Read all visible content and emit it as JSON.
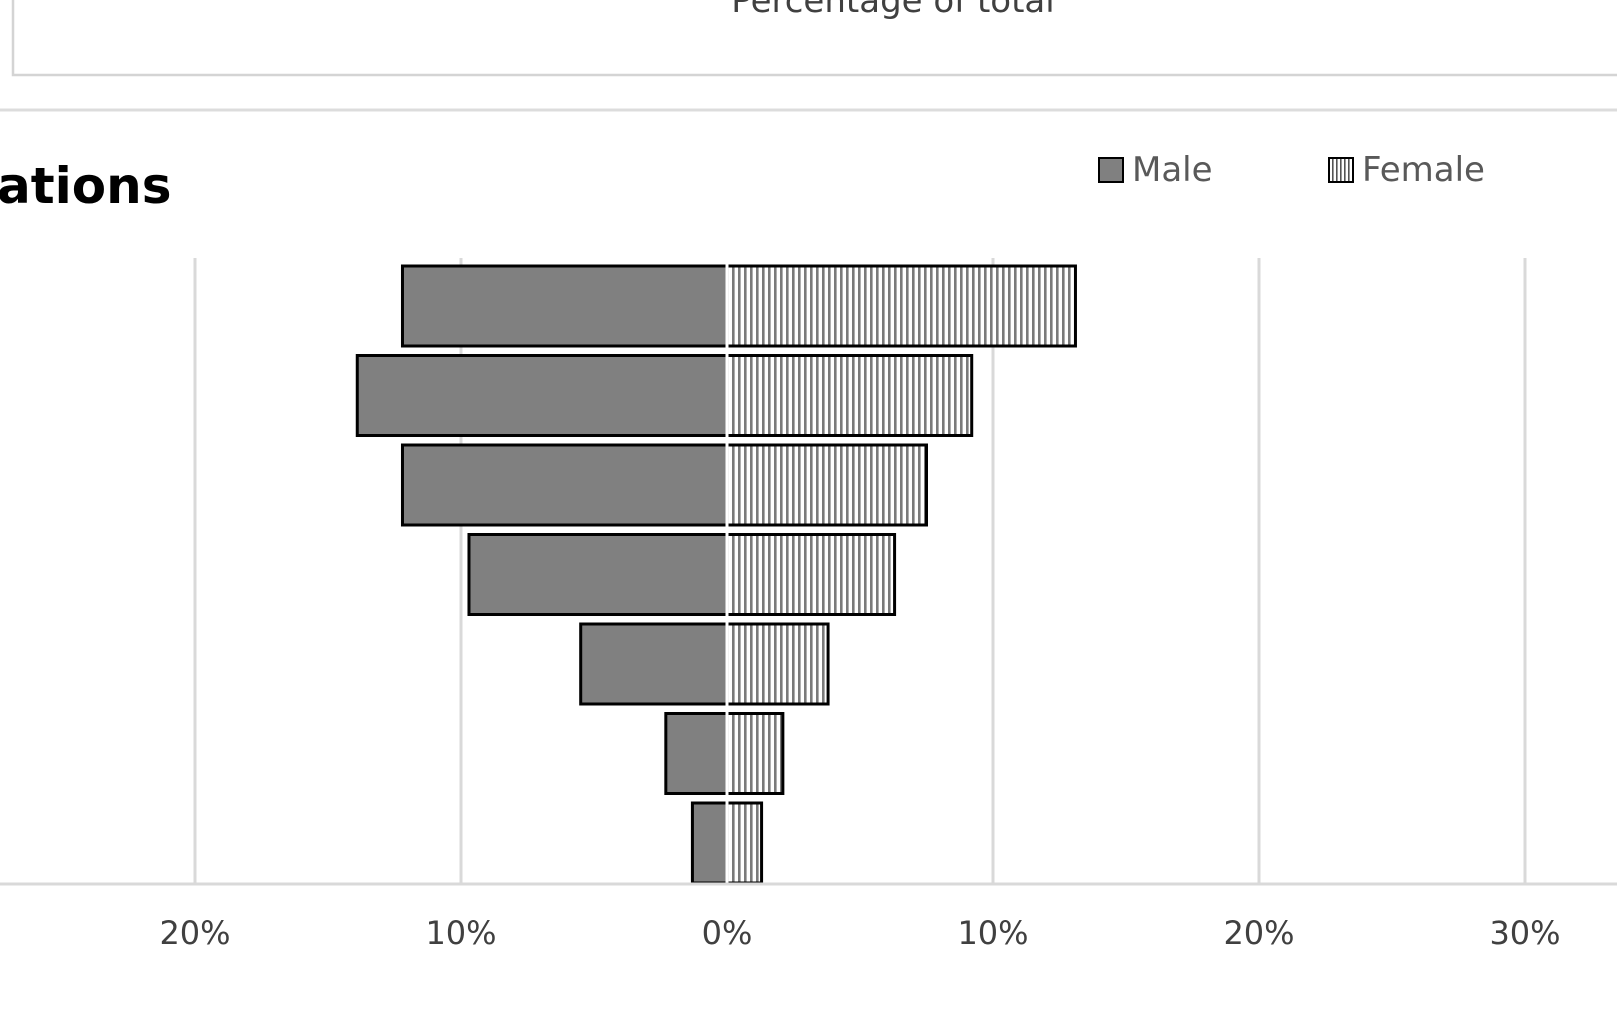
{
  "upper_panel": {
    "axis_title": "Percentage of total"
  },
  "chart_data": {
    "type": "bar",
    "orientation": "horizontal",
    "title": "ations",
    "legend_position": "top-right",
    "series": [
      {
        "name": "Male",
        "color": "#808080",
        "pattern": "solid",
        "values": [
          -12.2,
          -13.9,
          -12.2,
          -9.7,
          -5.5,
          -2.3,
          -1.3
        ]
      },
      {
        "name": "Female",
        "color": "#808080",
        "pattern": "vertical-stripes",
        "values": [
          13.1,
          9.2,
          7.5,
          6.3,
          3.8,
          2.1,
          1.3
        ]
      }
    ],
    "xlim": [
      -20,
      30
    ],
    "xticks": [
      {
        "value": -20,
        "label": "20%"
      },
      {
        "value": -10,
        "label": "10%"
      },
      {
        "value": 0,
        "label": "0%"
      },
      {
        "value": 10,
        "label": "10%"
      },
      {
        "value": 20,
        "label": "20%"
      },
      {
        "value": 30,
        "label": "30%"
      }
    ],
    "grid": true
  }
}
